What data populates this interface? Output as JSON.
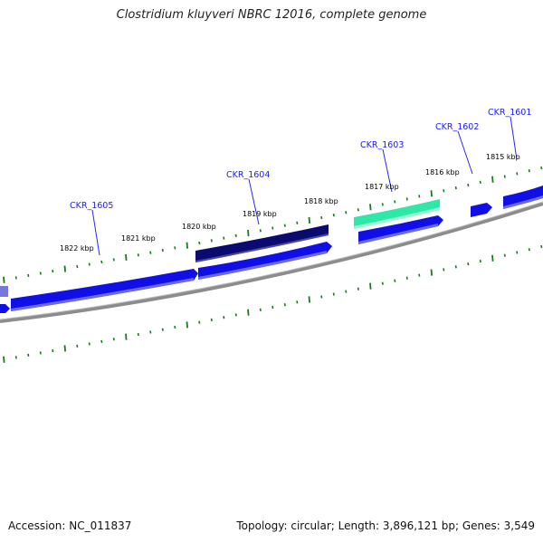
{
  "title": "Clostridium kluyveri NBRC 12016, complete genome",
  "footer": {
    "accession": "Accession: NC_011837",
    "summary": "Topology: circular; Length: 3,896,121 bp; Genes: 3,549"
  },
  "colors": {
    "forward_gene": "#1010e6",
    "reverse_gene": "#0a0a70",
    "highlight_gene": "#2ee8a8",
    "backbone": "#888888",
    "tick": "#1a7a1a",
    "gene_label": "#1a1aff"
  },
  "kbp_labels": [
    {
      "text": "1815 kbp"
    },
    {
      "text": "1816 kbp"
    },
    {
      "text": "1817 kbp"
    },
    {
      "text": "1818 kbp"
    },
    {
      "text": "1819 kbp"
    },
    {
      "text": "1820 kbp"
    },
    {
      "text": "1821 kbp"
    },
    {
      "text": "1822 kbp"
    }
  ],
  "gene_labels": [
    {
      "text": "CKR_1601"
    },
    {
      "text": "CKR_1602"
    },
    {
      "text": "CKR_1603"
    },
    {
      "text": "CKR_1604"
    },
    {
      "text": "CKR_1605"
    }
  ]
}
